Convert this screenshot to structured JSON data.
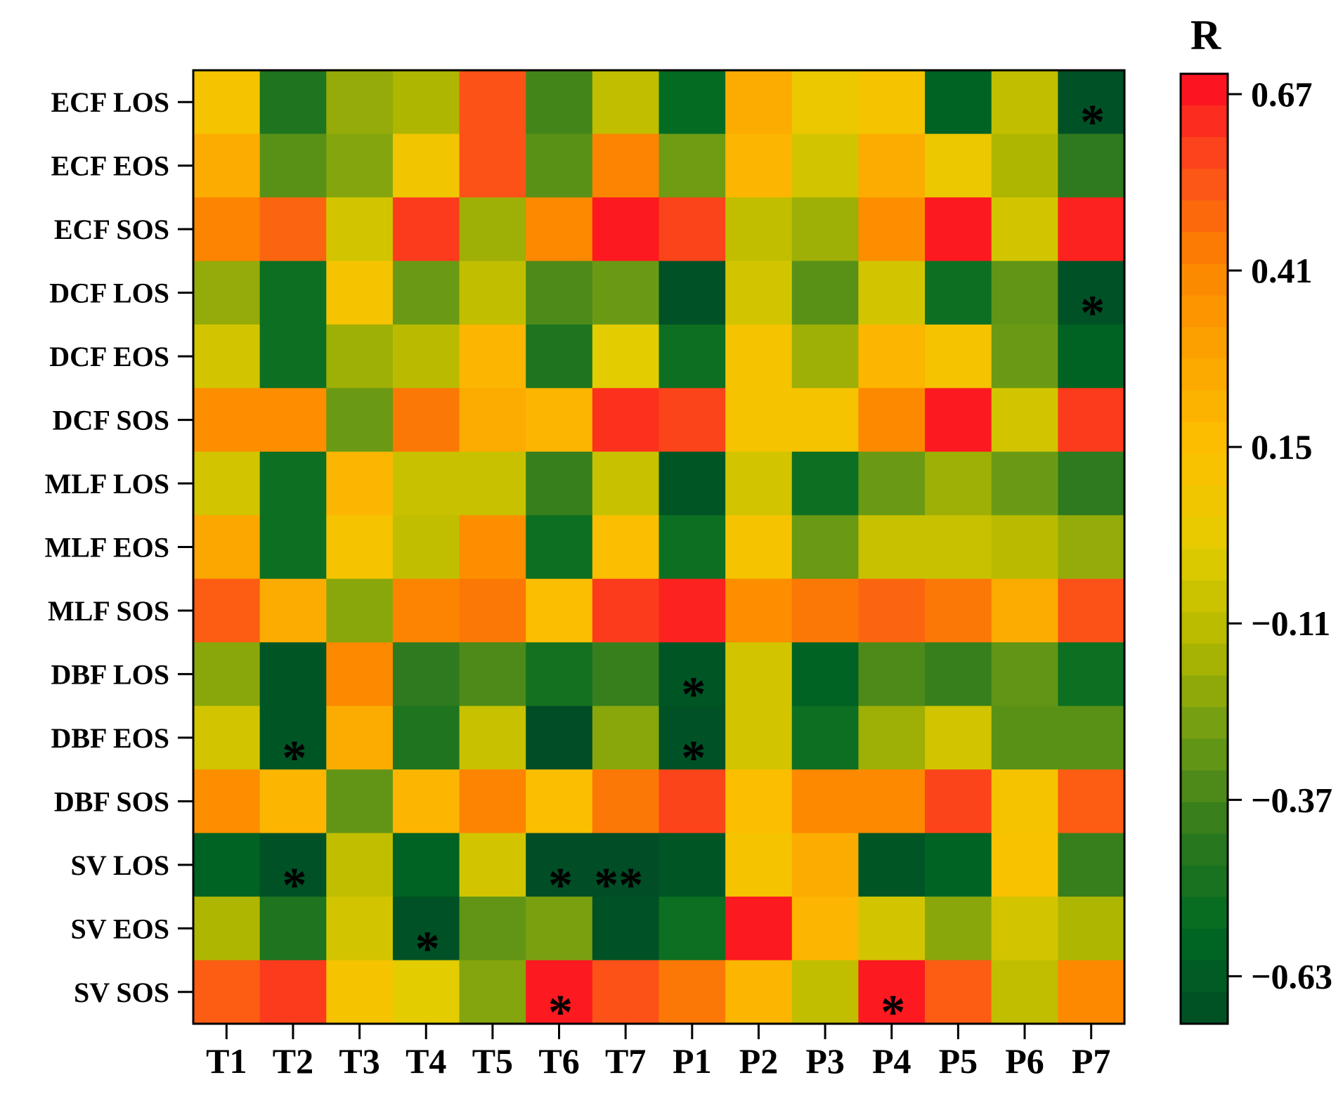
{
  "chart_data": {
    "type": "heatmap",
    "title": "",
    "xlabel": "",
    "ylabel": "",
    "x_categories": [
      "T1",
      "T2",
      "T3",
      "T4",
      "T5",
      "T6",
      "T7",
      "P1",
      "P2",
      "P3",
      "P4",
      "P5",
      "P6",
      "P7"
    ],
    "y_categories": [
      "ECF LOS",
      "ECF EOS",
      "ECF SOS",
      "DCF LOS",
      "DCF EOS",
      "DCF SOS",
      "MLF LOS",
      "MLF EOS",
      "MLF SOS",
      "DBF LOS",
      "DBF EOS",
      "DBF SOS",
      "SV LOS",
      "SV EOS",
      "SV SOS"
    ],
    "values": [
      [
        0.1,
        -0.47,
        -0.2,
        -0.15,
        0.55,
        -0.37,
        -0.1,
        -0.55,
        0.25,
        0.05,
        0.1,
        -0.6,
        -0.1,
        -0.68
      ],
      [
        0.25,
        -0.32,
        -0.23,
        0.08,
        0.55,
        -0.32,
        0.42,
        -0.27,
        0.2,
        -0.05,
        0.25,
        0.05,
        -0.15,
        -0.42
      ],
      [
        0.42,
        0.5,
        -0.05,
        0.6,
        -0.18,
        0.4,
        0.67,
        0.58,
        -0.1,
        -0.18,
        0.38,
        0.67,
        -0.05,
        0.65
      ],
      [
        -0.2,
        -0.52,
        0.1,
        -0.28,
        -0.1,
        -0.35,
        -0.28,
        -0.68,
        -0.05,
        -0.32,
        -0.05,
        -0.52,
        -0.3,
        -0.68
      ],
      [
        -0.05,
        -0.52,
        -0.18,
        -0.12,
        0.2,
        -0.47,
        0.0,
        -0.52,
        0.1,
        -0.18,
        0.2,
        0.1,
        -0.28,
        -0.6
      ],
      [
        0.38,
        0.38,
        -0.28,
        0.45,
        0.25,
        0.2,
        0.62,
        0.58,
        0.1,
        0.1,
        0.4,
        0.67,
        -0.05,
        0.6
      ],
      [
        -0.05,
        -0.52,
        0.2,
        -0.08,
        -0.08,
        -0.4,
        -0.08,
        -0.66,
        -0.05,
        -0.52,
        -0.28,
        -0.18,
        -0.28,
        -0.42
      ],
      [
        0.28,
        -0.52,
        0.1,
        -0.1,
        0.38,
        -0.52,
        0.15,
        -0.52,
        0.1,
        -0.28,
        -0.08,
        -0.08,
        -0.12,
        -0.2
      ],
      [
        0.52,
        0.25,
        -0.22,
        0.42,
        0.45,
        0.15,
        0.6,
        0.65,
        0.38,
        0.45,
        0.5,
        0.45,
        0.25,
        0.55
      ],
      [
        -0.22,
        -0.66,
        0.4,
        -0.42,
        -0.35,
        -0.5,
        -0.4,
        -0.66,
        -0.05,
        -0.6,
        -0.35,
        -0.4,
        -0.3,
        -0.52
      ],
      [
        -0.05,
        -0.66,
        0.25,
        -0.47,
        -0.08,
        -0.7,
        -0.22,
        -0.68,
        -0.05,
        -0.52,
        -0.18,
        -0.05,
        -0.32,
        -0.32
      ],
      [
        0.38,
        0.2,
        -0.3,
        0.2,
        0.42,
        0.15,
        0.45,
        0.58,
        0.15,
        0.4,
        0.4,
        0.58,
        0.1,
        0.52
      ],
      [
        -0.6,
        -0.68,
        -0.1,
        -0.6,
        -0.05,
        -0.7,
        -0.7,
        -0.66,
        0.1,
        0.25,
        -0.66,
        -0.6,
        0.12,
        -0.4
      ],
      [
        -0.15,
        -0.47,
        -0.05,
        -0.68,
        -0.3,
        -0.25,
        -0.68,
        -0.52,
        0.67,
        0.2,
        -0.05,
        -0.22,
        -0.05,
        -0.15
      ],
      [
        0.52,
        0.6,
        0.1,
        0.0,
        -0.23,
        0.67,
        0.55,
        0.45,
        0.2,
        -0.1,
        0.67,
        0.52,
        -0.1,
        0.4
      ]
    ],
    "significance": [
      [
        "",
        "",
        "",
        "",
        "",
        "",
        "",
        "",
        "",
        "",
        "",
        "",
        "",
        "*"
      ],
      [
        "",
        "",
        "",
        "",
        "",
        "",
        "",
        "",
        "",
        "",
        "",
        "",
        "",
        ""
      ],
      [
        "",
        "",
        "",
        "",
        "",
        "",
        "",
        "",
        "",
        "",
        "",
        "",
        "",
        ""
      ],
      [
        "",
        "",
        "",
        "",
        "",
        "",
        "",
        "",
        "",
        "",
        "",
        "",
        "",
        "*"
      ],
      [
        "",
        "",
        "",
        "",
        "",
        "",
        "",
        "",
        "",
        "",
        "",
        "",
        "",
        ""
      ],
      [
        "",
        "",
        "",
        "",
        "",
        "",
        "",
        "",
        "",
        "",
        "",
        "",
        "",
        ""
      ],
      [
        "",
        "",
        "",
        "",
        "",
        "",
        "",
        "",
        "",
        "",
        "",
        "",
        "",
        ""
      ],
      [
        "",
        "",
        "",
        "",
        "",
        "",
        "",
        "",
        "",
        "",
        "",
        "",
        "",
        ""
      ],
      [
        "",
        "",
        "",
        "",
        "",
        "",
        "",
        "",
        "",
        "",
        "",
        "",
        "",
        ""
      ],
      [
        "",
        "",
        "",
        "",
        "",
        "",
        "",
        "*",
        "",
        "",
        "",
        "",
        "",
        ""
      ],
      [
        "",
        "*",
        "",
        "",
        "",
        "",
        "",
        "*",
        "",
        "",
        "",
        "",
        "",
        ""
      ],
      [
        "",
        "",
        "",
        "",
        "",
        "",
        "",
        "",
        "",
        "",
        "",
        "",
        "",
        ""
      ],
      [
        "",
        "*",
        "",
        "",
        "",
        "*",
        "**",
        "",
        "",
        "",
        "",
        "",
        "",
        ""
      ],
      [
        "",
        "",
        "",
        "*",
        "",
        "",
        "",
        "",
        "",
        "",
        "",
        "",
        "",
        ""
      ],
      [
        "",
        "",
        "",
        "",
        "",
        "*",
        "",
        "",
        "",
        "",
        "*",
        "",
        "",
        ""
      ]
    ],
    "colorbar": {
      "title": "R",
      "range": [
        -0.7,
        0.7
      ],
      "ticks": [
        0.67,
        0.41,
        0.15,
        -0.11,
        -0.37,
        -0.63
      ],
      "tick_labels": [
        "0.67",
        "0.41",
        "0.15",
        "−0.11",
        "−0.37",
        "−0.63"
      ],
      "colors": [
        "#004d26",
        "#006a22",
        "#2f7a1e",
        "#6a9a14",
        "#b3b800",
        "#e3cc00",
        "#fcc000",
        "#fca600",
        "#fc8400",
        "#fc4e1a",
        "#fc0a22"
      ]
    }
  }
}
